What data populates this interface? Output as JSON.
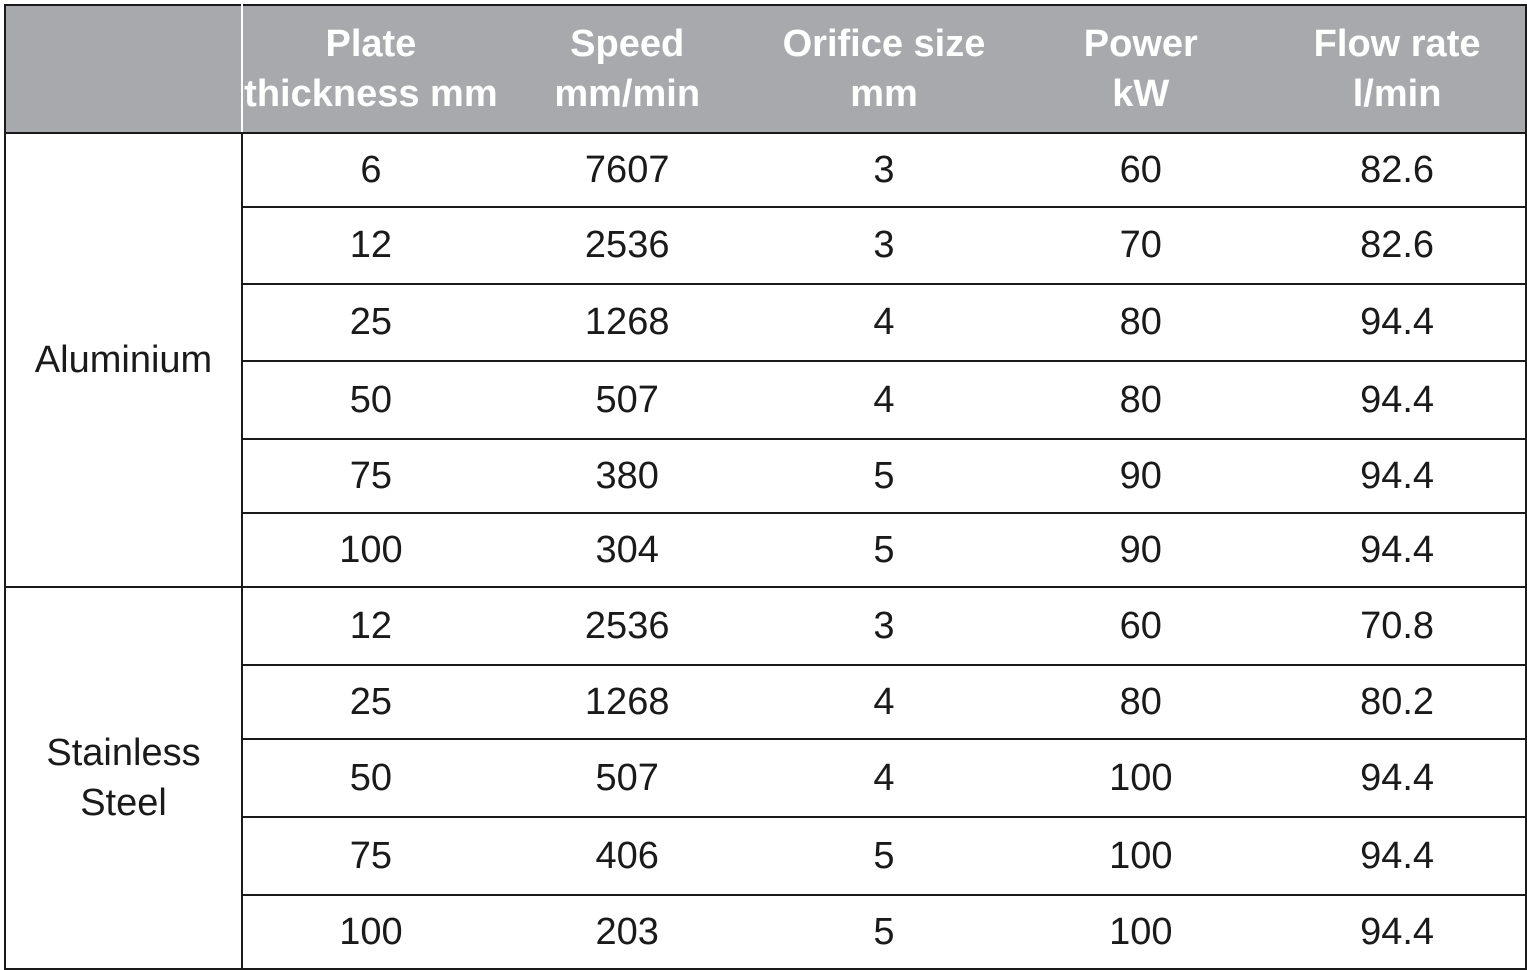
{
  "header": {
    "blank": "",
    "plate_l1": "Plate",
    "plate_l2": "thickness mm",
    "speed_l1": "Speed",
    "speed_l2": "mm/min",
    "orifice_l1": "Orifice size",
    "orifice_l2": "mm",
    "power_l1": "Power",
    "power_l2": "kW",
    "flow_l1": "Flow rate",
    "flow_l2": "l/min"
  },
  "groups": [
    {
      "material_l1": "Aluminium",
      "material_l2": "",
      "rows": [
        {
          "thickness": "6",
          "speed": "7607",
          "orifice": "3",
          "power": "60",
          "flow": "82.6"
        },
        {
          "thickness": "12",
          "speed": "2536",
          "orifice": "3",
          "power": "70",
          "flow": "82.6"
        },
        {
          "thickness": "25",
          "speed": "1268",
          "orifice": "4",
          "power": "80",
          "flow": "94.4"
        },
        {
          "thickness": "50",
          "speed": "507",
          "orifice": "4",
          "power": "80",
          "flow": "94.4"
        },
        {
          "thickness": "75",
          "speed": "380",
          "orifice": "5",
          "power": "90",
          "flow": "94.4"
        },
        {
          "thickness": "100",
          "speed": "304",
          "orifice": "5",
          "power": "90",
          "flow": "94.4"
        }
      ]
    },
    {
      "material_l1": "Stainless",
      "material_l2": "Steel",
      "rows": [
        {
          "thickness": "12",
          "speed": "2536",
          "orifice": "3",
          "power": "60",
          "flow": "70.8"
        },
        {
          "thickness": "25",
          "speed": "1268",
          "orifice": "4",
          "power": "80",
          "flow": "80.2"
        },
        {
          "thickness": "50",
          "speed": "507",
          "orifice": "4",
          "power": "100",
          "flow": "94.4"
        },
        {
          "thickness": "75",
          "speed": "406",
          "orifice": "5",
          "power": "100",
          "flow": "94.4"
        },
        {
          "thickness": "100",
          "speed": "203",
          "orifice": "5",
          "power": "100",
          "flow": "94.4"
        }
      ]
    }
  ],
  "colors": {
    "header_bg": "#a7a9ac",
    "header_text": "#ffffff",
    "rule": "#1a1a1a"
  }
}
